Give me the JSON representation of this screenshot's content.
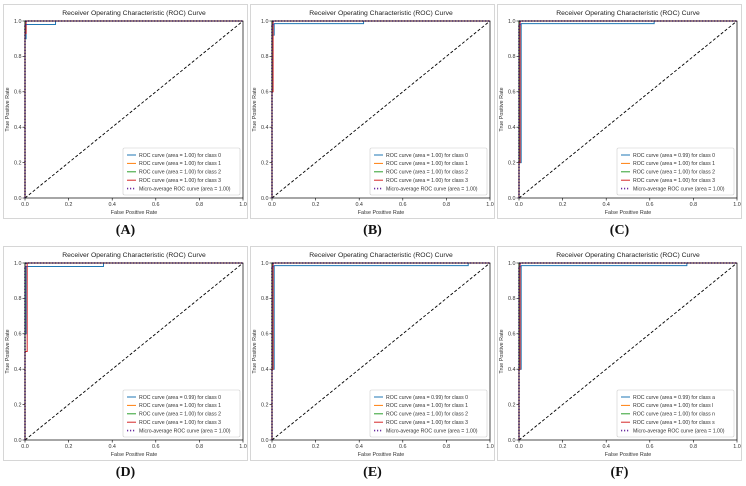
{
  "chart_data": [
    {
      "panel": "(A)",
      "type": "line",
      "title": "Receiver Operating Characteristic (ROC) Curve",
      "xlabel": "False Positive Rate",
      "ylabel": "True Positive Rate",
      "xlim": [
        0,
        1
      ],
      "ylim": [
        0,
        1
      ],
      "xticks": [
        "0.0",
        "0.2",
        "0.4",
        "0.6",
        "0.8",
        "1.0"
      ],
      "yticks": [
        "0.0",
        "0.2",
        "0.4",
        "0.6",
        "0.8",
        "1.0"
      ],
      "legend_position": "lower-right",
      "series": [
        {
          "name": "ROC curve (area = 1.00) for class 0",
          "color": "#1f77b4",
          "style": "solid",
          "x": [
            0,
            0,
            0.005,
            0.005,
            0.14,
            0.14,
            1
          ],
          "y": [
            0,
            0.9,
            0.9,
            0.98,
            0.98,
            1,
            1
          ]
        },
        {
          "name": "ROC curve (area = 1.00) for class 1",
          "color": "#ff7f0e",
          "style": "solid",
          "x": [
            0,
            0,
            1
          ],
          "y": [
            0,
            1,
            1
          ]
        },
        {
          "name": "ROC curve (area = 1.00) for class 2",
          "color": "#2ca02c",
          "style": "solid",
          "x": [
            0,
            0,
            1
          ],
          "y": [
            0,
            1,
            1
          ]
        },
        {
          "name": "ROC curve (area = 1.00) for class 3",
          "color": "#d62728",
          "style": "solid",
          "x": [
            0,
            0,
            0.005,
            0.005,
            1
          ],
          "y": [
            0,
            0.93,
            0.93,
            1,
            1
          ]
        },
        {
          "name": "Micro-average ROC curve (area = 1.00)",
          "color": "#6a2ca0",
          "style": "dotted",
          "x": [
            0,
            0,
            0.005,
            0.005,
            1
          ],
          "y": [
            0,
            0.97,
            0.97,
            1,
            1
          ]
        }
      ]
    },
    {
      "panel": "(B)",
      "type": "line",
      "title": "Receiver Operating Characteristic (ROC) Curve",
      "xlabel": "False Positive Rate",
      "ylabel": "True Positive Rate",
      "xlim": [
        0,
        1
      ],
      "ylim": [
        0,
        1
      ],
      "xticks": [
        "0.0",
        "0.2",
        "0.4",
        "0.6",
        "0.8",
        "1.0"
      ],
      "yticks": [
        "0.0",
        "0.2",
        "0.4",
        "0.6",
        "0.8",
        "1.0"
      ],
      "legend_position": "lower-right",
      "series": [
        {
          "name": "ROC curve (area = 1.00) for class 0",
          "color": "#1f77b4",
          "style": "solid",
          "x": [
            0,
            0,
            0.01,
            0.01,
            0.42,
            0.42,
            1
          ],
          "y": [
            0,
            0.92,
            0.92,
            0.985,
            0.985,
            1,
            1
          ]
        },
        {
          "name": "ROC curve (area = 1.00) for class 1",
          "color": "#ff7f0e",
          "style": "solid",
          "x": [
            0,
            0,
            1
          ],
          "y": [
            0,
            1,
            1
          ]
        },
        {
          "name": "ROC curve (area = 1.00) for class 2",
          "color": "#2ca02c",
          "style": "solid",
          "x": [
            0,
            0,
            1
          ],
          "y": [
            0,
            1,
            1
          ]
        },
        {
          "name": "ROC curve (area = 1.00) for class 3",
          "color": "#d62728",
          "style": "solid",
          "x": [
            0,
            0,
            0.005,
            0.005,
            1
          ],
          "y": [
            0,
            0.6,
            0.6,
            1,
            1
          ]
        },
        {
          "name": "Micro-average ROC curve (area = 1.00)",
          "color": "#6a2ca0",
          "style": "dotted",
          "x": [
            0,
            0,
            0.005,
            0.005,
            1
          ],
          "y": [
            0,
            0.97,
            0.97,
            1,
            1
          ]
        }
      ]
    },
    {
      "panel": "(C)",
      "type": "line",
      "title": "Receiver Operating Characteristic (ROC) Curve",
      "xlabel": "False Positive Rate",
      "ylabel": "True Positive Rate",
      "xlim": [
        0,
        1
      ],
      "ylim": [
        0,
        1
      ],
      "xticks": [
        "0.0",
        "0.2",
        "0.4",
        "0.6",
        "0.8",
        "1.0"
      ],
      "yticks": [
        "0.0",
        "0.2",
        "0.4",
        "0.6",
        "0.8",
        "1.0"
      ],
      "legend_position": "lower-right",
      "series": [
        {
          "name": "ROC curve (area = 0.99) for class 0",
          "color": "#1f77b4",
          "style": "solid",
          "x": [
            0,
            0,
            0.01,
            0.01,
            0.62,
            0.62,
            1
          ],
          "y": [
            0,
            0.2,
            0.2,
            0.985,
            0.985,
            1,
            1
          ]
        },
        {
          "name": "ROC curve (area = 1.00) for class 1",
          "color": "#ff7f0e",
          "style": "solid",
          "x": [
            0,
            0,
            1
          ],
          "y": [
            0,
            1,
            1
          ]
        },
        {
          "name": "ROC curve (area = 1.00) for class 2",
          "color": "#2ca02c",
          "style": "solid",
          "x": [
            0,
            0,
            1
          ],
          "y": [
            0,
            1,
            1
          ]
        },
        {
          "name": "ROC curve (area = 1.00) for class 3",
          "color": "#d62728",
          "style": "solid",
          "x": [
            0,
            0,
            0.005,
            0.005,
            1
          ],
          "y": [
            0,
            0.2,
            0.2,
            1,
            1
          ]
        },
        {
          "name": "Micro-average ROC curve (area = 1.00)",
          "color": "#6a2ca0",
          "style": "dotted",
          "x": [
            0,
            0,
            0.005,
            0.005,
            1
          ],
          "y": [
            0,
            0.97,
            0.97,
            1,
            1
          ]
        }
      ]
    },
    {
      "panel": "(D)",
      "type": "line",
      "title": "Receiver Operating Characteristic (ROC) Curve",
      "xlabel": "False Positive Rate",
      "ylabel": "True Positive Rate",
      "xlim": [
        0,
        1
      ],
      "ylim": [
        0,
        1
      ],
      "xticks": [
        "0.0",
        "0.2",
        "0.4",
        "0.6",
        "0.8",
        "1.0"
      ],
      "yticks": [
        "0.0",
        "0.2",
        "0.4",
        "0.6",
        "0.8",
        "1.0"
      ],
      "legend_position": "lower-right",
      "series": [
        {
          "name": "ROC curve (area = 0.99) for class 0",
          "color": "#1f77b4",
          "style": "solid",
          "x": [
            0,
            0,
            0.005,
            0.005,
            0.36,
            0.36,
            1
          ],
          "y": [
            0,
            0.6,
            0.6,
            0.98,
            0.98,
            1,
            1
          ]
        },
        {
          "name": "ROC curve (area = 1.00) for class 1",
          "color": "#ff7f0e",
          "style": "solid",
          "x": [
            0,
            0,
            1
          ],
          "y": [
            0,
            1,
            1
          ]
        },
        {
          "name": "ROC curve (area = 1.00) for class 2",
          "color": "#2ca02c",
          "style": "solid",
          "x": [
            0,
            0,
            1
          ],
          "y": [
            0,
            1,
            1
          ]
        },
        {
          "name": "ROC curve (area = 1.00) for class 3",
          "color": "#d62728",
          "style": "solid",
          "x": [
            0,
            0,
            0.01,
            0.01,
            1
          ],
          "y": [
            0,
            0.5,
            0.5,
            1,
            1
          ]
        },
        {
          "name": "Micro-average ROC curve (area = 1.00)",
          "color": "#6a2ca0",
          "style": "dotted",
          "x": [
            0,
            0,
            0.005,
            0.005,
            1
          ],
          "y": [
            0,
            0.97,
            0.97,
            1,
            1
          ]
        }
      ]
    },
    {
      "panel": "(E)",
      "type": "line",
      "title": "Receiver Operating Characteristic (ROC) Curve",
      "xlabel": "False Positive Rate",
      "ylabel": "True Positive Rate",
      "xlim": [
        0,
        1
      ],
      "ylim": [
        0,
        1
      ],
      "xticks": [
        "0.0",
        "0.2",
        "0.4",
        "0.6",
        "0.8",
        "1.0"
      ],
      "yticks": [
        "0.0",
        "0.2",
        "0.4",
        "0.6",
        "0.8",
        "1.0"
      ],
      "legend_position": "lower-right",
      "series": [
        {
          "name": "ROC curve (area = 0.99) for class 0",
          "color": "#1f77b4",
          "style": "solid",
          "x": [
            0,
            0,
            0.01,
            0.01,
            0.9,
            0.9,
            1
          ],
          "y": [
            0,
            0.4,
            0.4,
            0.985,
            0.985,
            1,
            1
          ]
        },
        {
          "name": "ROC curve (area = 1.00) for class 1",
          "color": "#ff7f0e",
          "style": "solid",
          "x": [
            0,
            0,
            1
          ],
          "y": [
            0,
            1,
            1
          ]
        },
        {
          "name": "ROC curve (area = 1.00) for class 2",
          "color": "#2ca02c",
          "style": "solid",
          "x": [
            0,
            0,
            1
          ],
          "y": [
            0,
            1,
            1
          ]
        },
        {
          "name": "ROC curve (area = 1.00) for class 3",
          "color": "#d62728",
          "style": "solid",
          "x": [
            0,
            0,
            0.005,
            0.005,
            1
          ],
          "y": [
            0,
            0.4,
            0.4,
            1,
            1
          ]
        },
        {
          "name": "Micro-average ROC curve (area = 1.00)",
          "color": "#6a2ca0",
          "style": "dotted",
          "x": [
            0,
            0,
            0.005,
            0.005,
            1
          ],
          "y": [
            0,
            0.97,
            0.97,
            1,
            1
          ]
        }
      ]
    },
    {
      "panel": "(F)",
      "type": "line",
      "title": "Receiver Operating Characteristic (ROC) Curve",
      "xlabel": "False Positive Rate",
      "ylabel": "True Positive Rate",
      "xlim": [
        0,
        1
      ],
      "ylim": [
        0,
        1
      ],
      "xticks": [
        "0.0",
        "0.2",
        "0.4",
        "0.6",
        "0.8",
        "1.0"
      ],
      "yticks": [
        "0.0",
        "0.2",
        "0.4",
        "0.6",
        "0.8",
        "1.0"
      ],
      "legend_position": "lower-right",
      "series": [
        {
          "name": "ROC curve (area = 0.99) for class a",
          "color": "#1f77b4",
          "style": "solid",
          "x": [
            0,
            0,
            0.01,
            0.01,
            0.77,
            0.77,
            1
          ],
          "y": [
            0,
            0.4,
            0.4,
            0.985,
            0.985,
            1,
            1
          ]
        },
        {
          "name": "ROC curve (area = 1.00) for class l",
          "color": "#ff7f0e",
          "style": "solid",
          "x": [
            0,
            0,
            1
          ],
          "y": [
            0,
            1,
            1
          ]
        },
        {
          "name": "ROC curve (area = 1.00) for class n",
          "color": "#2ca02c",
          "style": "solid",
          "x": [
            0,
            0,
            1
          ],
          "y": [
            0,
            1,
            1
          ]
        },
        {
          "name": "ROC curve (area = 1.00) for class s",
          "color": "#d62728",
          "style": "solid",
          "x": [
            0,
            0,
            0.005,
            0.005,
            1
          ],
          "y": [
            0,
            0.4,
            0.4,
            1,
            1
          ]
        },
        {
          "name": "Micro-average ROC curve (area = 1.00)",
          "color": "#6a2ca0",
          "style": "dotted",
          "x": [
            0,
            0,
            0.005,
            0.005,
            1
          ],
          "y": [
            0,
            0.97,
            0.97,
            1,
            1
          ]
        }
      ]
    }
  ],
  "chance_line": {
    "x": [
      0,
      1
    ],
    "y": [
      0,
      1
    ],
    "color": "#000000",
    "style": "dashed"
  },
  "frame_color": "#000000",
  "panel_frame_color": "#cccccc"
}
